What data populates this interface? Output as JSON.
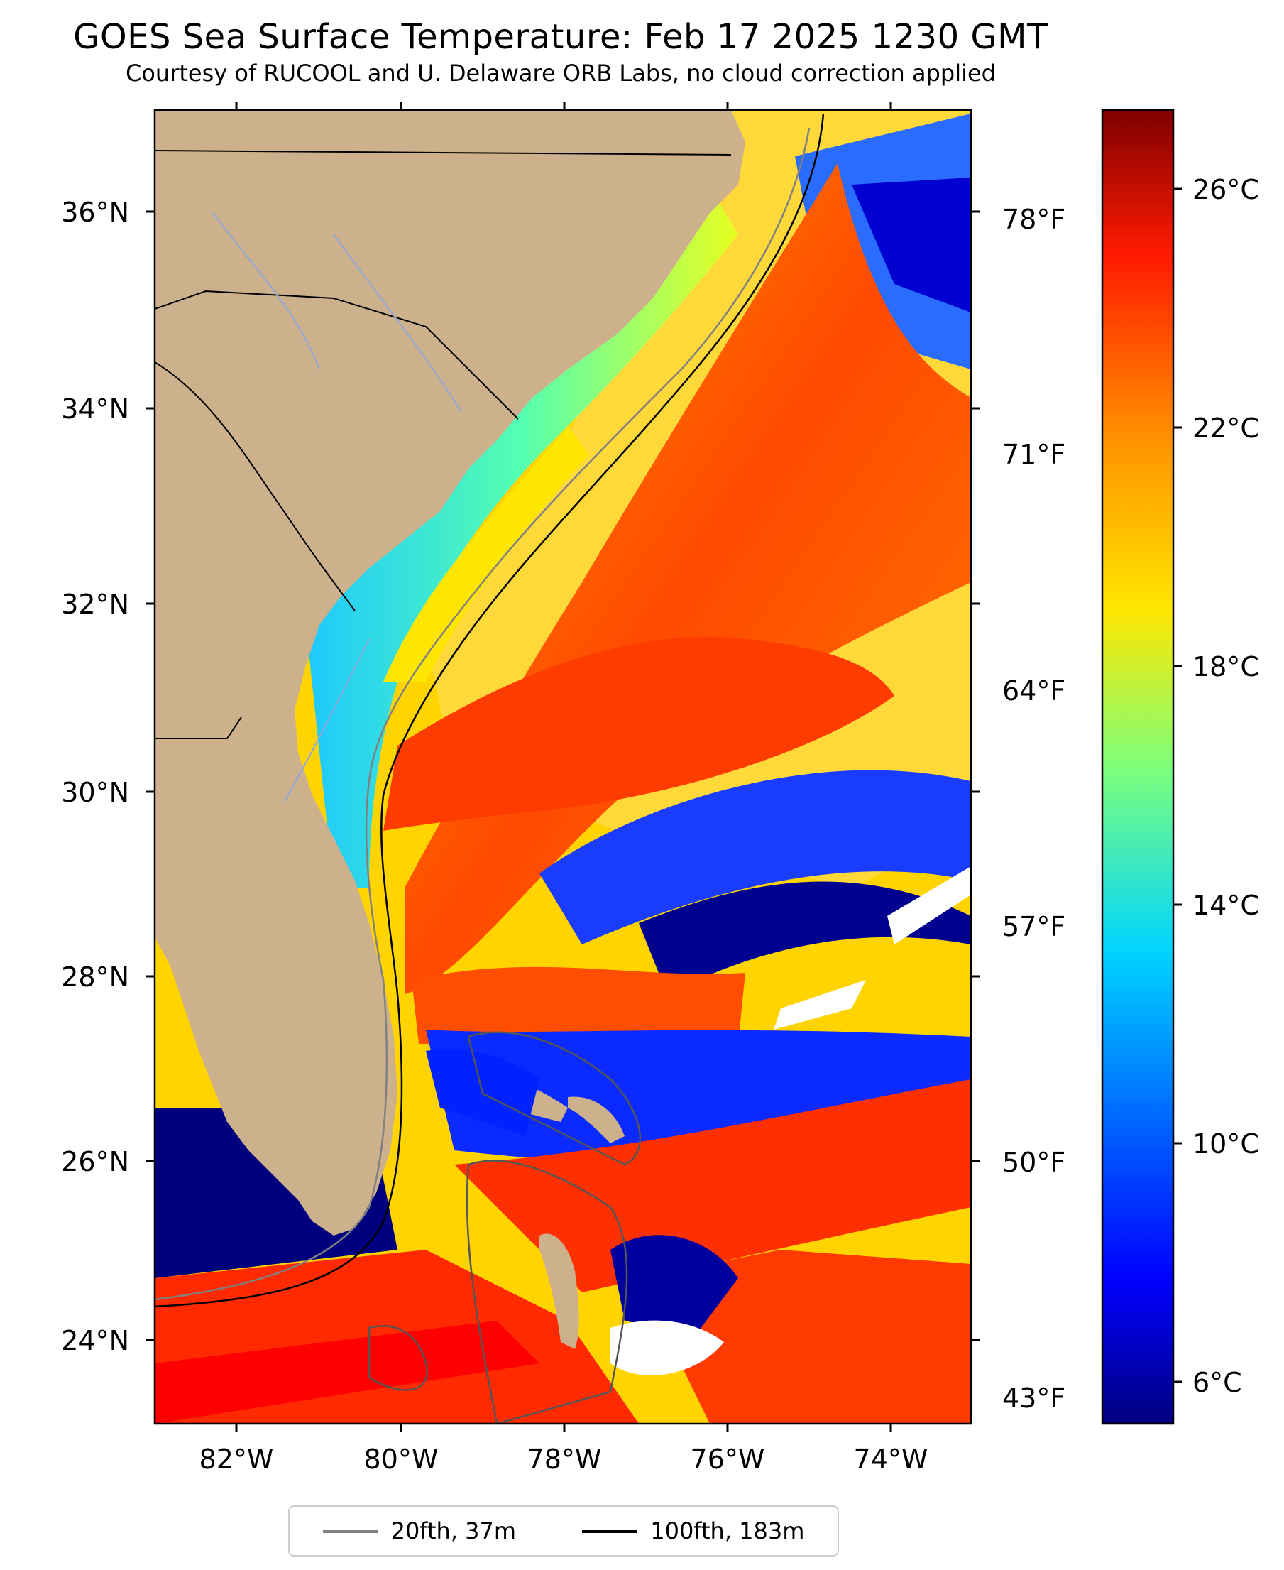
{
  "title": "GOES Sea Surface Temperature: Feb 17 2025 1230 GMT",
  "subtitle": "Courtesy of RUCOOL and U. Delaware ORB Labs, no cloud correction applied",
  "map": {
    "lat_labels": [
      "36°N",
      "34°N",
      "32°N",
      "30°N",
      "28°N",
      "26°N",
      "24°N"
    ],
    "lon_labels": [
      "82°W",
      "80°W",
      "78°W",
      "76°W",
      "74°W"
    ],
    "fahrenheit_labels": [
      "78°F",
      "71°F",
      "64°F",
      "57°F",
      "50°F",
      "43°F"
    ],
    "colors": {
      "land": "#cdb18c",
      "deep_cold": "#00007f",
      "warm": "#ff2d00"
    }
  },
  "colorbar": {
    "labels": [
      "26°C",
      "22°C",
      "18°C",
      "14°C",
      "10°C",
      "6°C"
    ],
    "range_c": [
      5.5,
      27.5
    ]
  },
  "legend": {
    "items": [
      {
        "label": "20fth, 37m",
        "color": "#808080"
      },
      {
        "label": "100fth, 183m",
        "color": "#000000"
      }
    ]
  }
}
